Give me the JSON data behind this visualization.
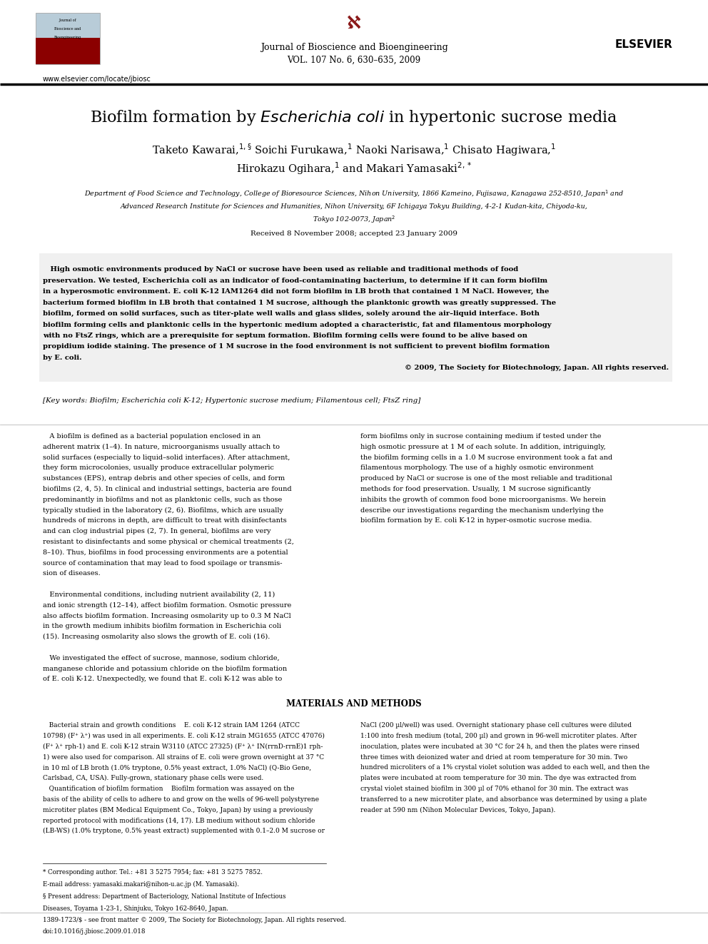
{
  "page_width": 9.92,
  "page_height": 13.23,
  "background_color": "#ffffff",
  "journal_name": "Journal of Bioscience and Bioengineering",
  "journal_vol": "VOL. 107 No. 6, 630–635, 2009",
  "website": "www.elsevier.com/locate/jbiosc",
  "received": "Received 8 November 2008; accepted 23 January 2009",
  "abstract_text_line1": "   High osmotic environments produced by NaCl or sucrose have been used as reliable and traditional methods of food",
  "abstract_text_line2": "preservation. We tested, Escherichia coli as an indicator of food-contaminating bacterium, to determine if it can form biofilm",
  "abstract_text_line3": "in a hyperosmotic environment. E. coli K-12 IAM1264 did not form biofilm in LB broth that contained 1 M NaCl. However, the",
  "abstract_text_line4": "bacterium formed biofilm in LB broth that contained 1 M sucrose, although the planktonic growth was greatly suppressed. The",
  "abstract_text_line5": "biofilm, formed on solid surfaces, such as titer-plate well walls and glass slides, solely around the air–liquid interface. Both",
  "abstract_text_line6": "biofilm forming cells and planktonic cells in the hypertonic medium adopted a characteristic, fat and filamentous morphology",
  "abstract_text_line7": "with no FtsZ rings, which are a prerequisite for septum formation. Biofilm forming cells were found to be alive based on",
  "abstract_text_line8": "propidium iodide staining. The presence of 1 M sucrose in the food environment is not sufficient to prevent biofilm formation",
  "abstract_text_line9": "by E. coli.",
  "copyright": "© 2009, The Society for Biotechnology, Japan. All rights reserved.",
  "keywords": "[Key words: Biofilm; Escherichia coli K-12; Hypertonic sucrose medium; Filamentous cell; FtsZ ring]",
  "col1_lines": [
    "   A biofilm is defined as a bacterial population enclosed in an",
    "adherent matrix (1–4). In nature, microorganisms usually attach to",
    "solid surfaces (especially to liquid–solid interfaces). After attachment,",
    "they form microcolonies, usually produce extracellular polymeric",
    "substances (EPS), entrap debris and other species of cells, and form",
    "biofilms (2, 4, 5). In clinical and industrial settings, bacteria are found",
    "predominantly in biofilms and not as planktonic cells, such as those",
    "typically studied in the laboratory (2, 6). Biofilms, which are usually",
    "hundreds of microns in depth, are difficult to treat with disinfectants",
    "and can clog industrial pipes (2, 7). In general, biofilms are very",
    "resistant to disinfectants and some physical or chemical treatments (2,",
    "8–10). Thus, biofilms in food processing environments are a potential",
    "source of contamination that may lead to food spoilage or transmis-",
    "sion of diseases.",
    "",
    "   Environmental conditions, including nutrient availability (2, 11)",
    "and ionic strength (12–14), affect biofilm formation. Osmotic pressure",
    "also affects biofilm formation. Increasing osmolarity up to 0.3 M NaCl",
    "in the growth medium inhibits biofilm formation in Escherichia coli",
    "(15). Increasing osmolarity also slows the growth of E. coli (16).",
    "",
    "   We investigated the effect of sucrose, mannose, sodium chloride,",
    "manganese chloride and potassium chloride on the biofilm formation",
    "of E. coli K-12. Unexpectedly, we found that E. coli K-12 was able to"
  ],
  "col2_lines": [
    "form biofilms only in sucrose containing medium if tested under the",
    "high osmotic pressure at 1 M of each solute. In addition, intriguingly,",
    "the biofilm forming cells in a 1.0 M sucrose environment took a fat and",
    "filamentous morphology. The use of a highly osmotic environment",
    "produced by NaCl or sucrose is one of the most reliable and traditional",
    "methods for food preservation. Usually, 1 M sucrose significantly",
    "inhibits the growth of common food bone microorganisms. We herein",
    "describe our investigations regarding the mechanism underlying the",
    "biofilm formation by E. coli K-12 in hyper-osmotic sucrose media."
  ],
  "mm_title": "MATERIALS AND METHODS",
  "mm_col1_lines": [
    "   Bacterial strain and growth conditions    E. coli K-12 strain IAM 1264 (ATCC",
    "10798) (F⁺ λ⁺) was used in all experiments. E. coli K-12 strain MG1655 (ATCC 47076)",
    "(F⁺ λ⁺ rph-1) and E. coli K-12 strain W3110 (ATCC 27325) (F⁺ λ⁺ IN(rrnD-rrnE)1 rph-",
    "1) were also used for comparison. All strains of E. coli were grown overnight at 37 °C",
    "in 10 ml of LB broth (1.0% tryptone, 0.5% yeast extract, 1.0% NaCl) (Q-Bio Gene,",
    "Carlsbad, CA, USA). Fully-grown, stationary phase cells were used.",
    "   Quantification of biofilm formation    Biofilm formation was assayed on the",
    "basis of the ability of cells to adhere to and grow on the wells of 96-well polystyrene",
    "microtiter plates (BM Medical Equipment Co., Tokyo, Japan) by using a previously",
    "reported protocol with modifications (14, 17). LB medium without sodium chloride",
    "(LB-WS) (1.0% tryptone, 0.5% yeast extract) supplemented with 0.1–2.0 M sucrose or",
    "NaCl (200 µl/well) was used. Overnight stationary phase cell cultures were diluted",
    "1:100 into fresh medium (total, 200 µl) and grown in 96-well microtiter plates. After",
    "inoculation, plates were incubated at 30 °C for 24 h, and then the plates were rinsed",
    "three times with deionized water and dried at room temperature for 30 min. Two",
    "hundred microliters of a 1% crystal violet solution was added to each well, and then the",
    "plates were incubated at room temperature for 30 min. The dye was extracted from",
    "crystal violet stained biofilm in 300 µl of 70% ethanol for 30 min. The extract was",
    "transferred to a new microtiter plate, and absorbance was determined by using a plate",
    "reader at 590 nm (Nihon Molecular Devices, Tokyo, Japan)."
  ],
  "footnote_star": "* Corresponding author. Tel.: +81 3 5275 7954; fax: +81 3 5275 7852.",
  "footnote_email": "E-mail address: yamasaki.makari@nihon-u.ac.jp (M. Yamasaki).",
  "footnote_section": "§ Present address: Department of Bacteriology, National Institute of Infectious",
  "footnote_section2": "Diseases, Toyama 1-23-1, Shinjuku, Tokyo 162-8640, Japan.",
  "footer_issn": "1389-1723/$ - see front matter © 2009, The Society for Biotechnology, Japan. All rights reserved.",
  "footer_doi": "doi:10.1016/j.jbiosc.2009.01.018",
  "text_color": "#000000",
  "link_color": "#0000cc"
}
